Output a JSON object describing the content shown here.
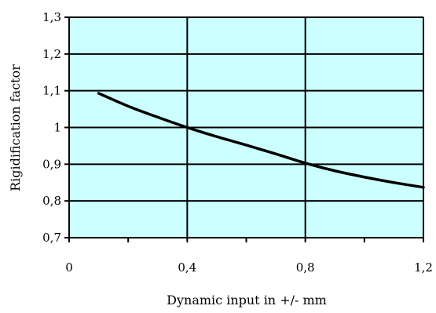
{
  "chart_data": {
    "type": "line",
    "xlabel": "Dynamic input in +/- mm",
    "ylabel": "Rigidification factor",
    "xlim": [
      0,
      1.2
    ],
    "ylim": [
      0.7,
      1.3
    ],
    "x_ticks": [
      "0",
      "0,4",
      "0,8",
      "1,2"
    ],
    "y_ticks": [
      "0,7",
      "0,8",
      "0,9",
      "1",
      "1,1",
      "1,2",
      "1,3"
    ],
    "x_gridlines": [
      0.4,
      0.8
    ],
    "y_gridlines": [
      0.8,
      0.9,
      1.0,
      1.1,
      1.2
    ],
    "plot_background": "#ccffff",
    "line_color": "#000000",
    "series": [
      {
        "x": [
          0.1,
          0.2,
          0.3,
          0.4,
          0.5,
          0.6,
          0.7,
          0.8,
          0.9,
          1.0,
          1.1,
          1.2
        ],
        "y": [
          1.093,
          1.058,
          1.028,
          1.0,
          0.975,
          0.952,
          0.928,
          0.903,
          0.882,
          0.865,
          0.85,
          0.837
        ]
      }
    ]
  }
}
